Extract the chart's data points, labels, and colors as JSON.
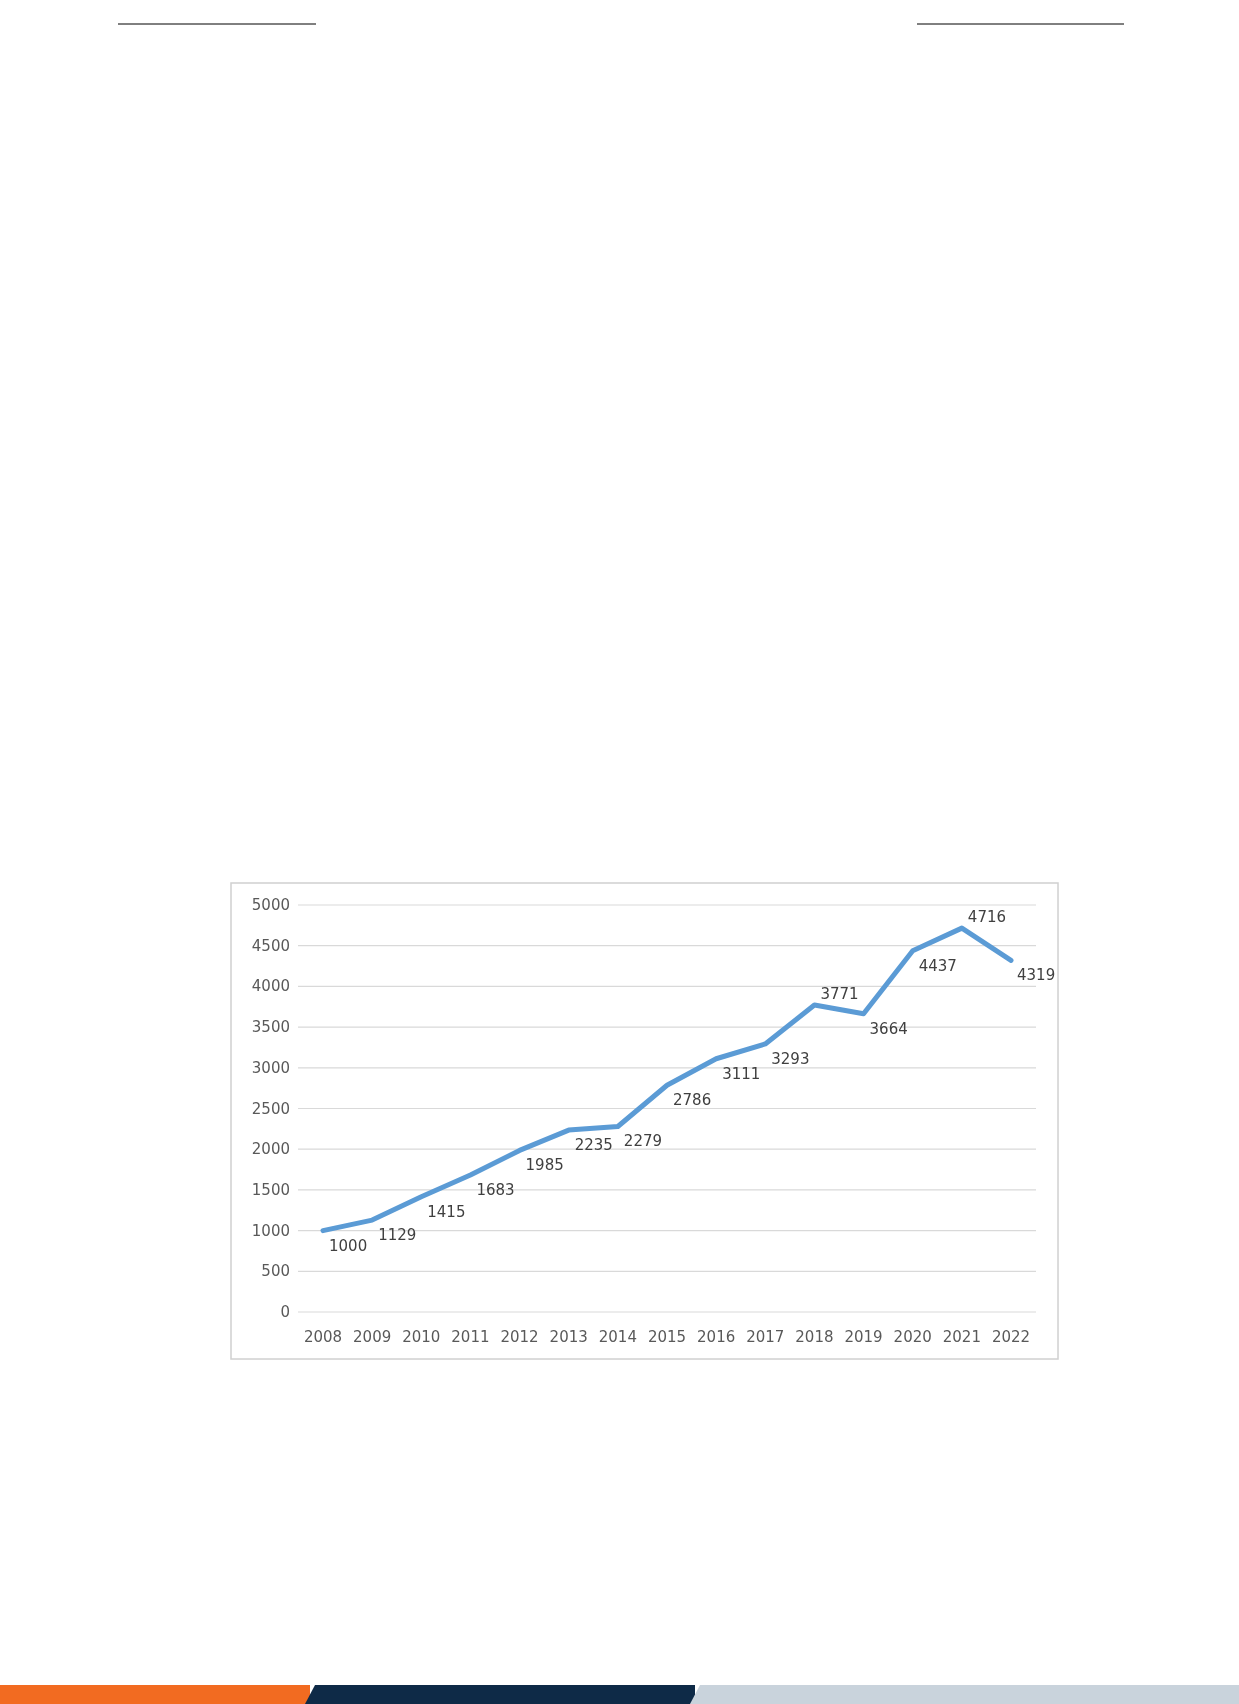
{
  "chart_data": {
    "type": "line",
    "categories": [
      "2008",
      "2009",
      "2010",
      "2011",
      "2012",
      "2013",
      "2014",
      "2015",
      "2016",
      "2017",
      "2018",
      "2019",
      "2020",
      "2021",
      "2022"
    ],
    "series": [
      {
        "color": "#5b9bd5",
        "values": [
          1000,
          1129,
          1415,
          1683,
          1985,
          2235,
          2279,
          2786,
          3111,
          3293,
          3771,
          3664,
          4437,
          4716,
          4319
        ]
      }
    ],
    "ylim": [
      0,
      5000
    ],
    "yticks": [
      0,
      500,
      1000,
      1500,
      2000,
      2500,
      3000,
      3500,
      4000,
      4500,
      5000
    ],
    "grid": "y",
    "data_labels": true,
    "marker": "none",
    "line_style": "solid"
  }
}
